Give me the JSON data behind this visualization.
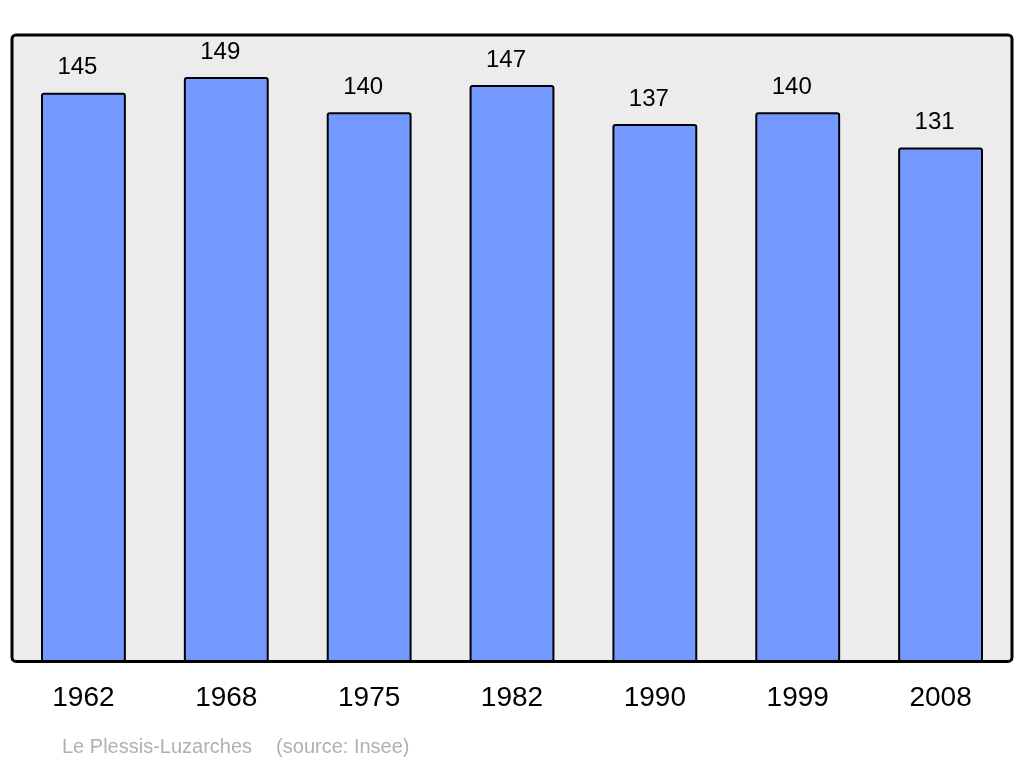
{
  "chart_data": {
    "type": "bar",
    "categories": [
      "1962",
      "1968",
      "1975",
      "1982",
      "1990",
      "1999",
      "2008"
    ],
    "values": [
      145,
      149,
      140,
      147,
      137,
      140,
      131
    ],
    "color": "#7399ff",
    "data_labels": true,
    "annotations": [
      "Le Plessis-Luzarches",
      "(source: Insee)"
    ]
  }
}
